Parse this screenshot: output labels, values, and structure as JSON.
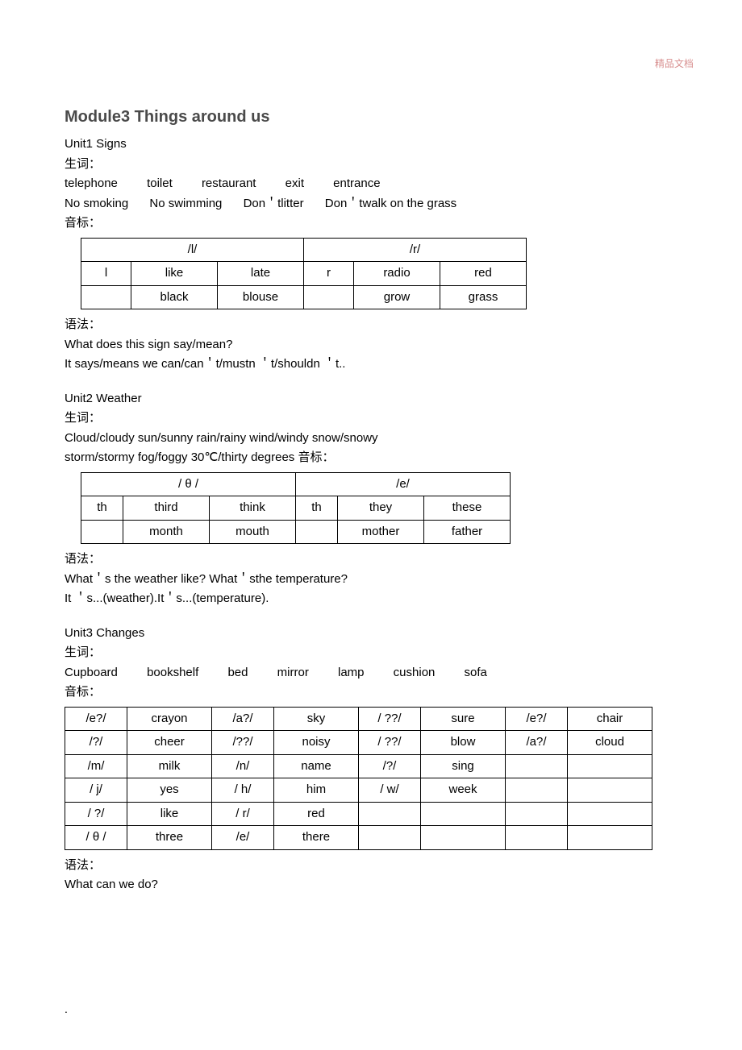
{
  "watermark": "精品文档",
  "module_title": "Module3 Things around us",
  "unit1": {
    "title": "Unit1 Signs",
    "vocab_label": "生词：",
    "vocab_line1": [
      "telephone",
      "toilet",
      "restaurant",
      "exit",
      "entrance"
    ],
    "vocab_line2": [
      "No smoking",
      "No swimming",
      "Don＇tlitter",
      "Don＇twalk on the grass"
    ],
    "phon_label": "音标：",
    "table": {
      "r0": [
        "/l/",
        "/r/"
      ],
      "r1": [
        "l",
        "like",
        "late",
        "r",
        "radio",
        "red"
      ],
      "r2": [
        "",
        "black",
        "blouse",
        "",
        "grow",
        "grass"
      ]
    },
    "grammar_label": "语法：",
    "grammar1": "What does this sign say/mean?",
    "grammar2": "It says/means we can/can＇t/mustn ＇t/shouldn ＇t.."
  },
  "unit2": {
    "title": "Unit2 Weather",
    "vocab_label": "生词：",
    "vocab_line1": "Cloud/cloudy sun/sunny rain/rainy wind/windy snow/snowy",
    "vocab_line2": "storm/stormy fog/foggy 30℃/thirty degrees 音标：",
    "table": {
      "r0": [
        "/ θ /",
        "/e/"
      ],
      "r1": [
        "th",
        "third",
        "think",
        "th",
        "they",
        "these"
      ],
      "r2": [
        "",
        "month",
        "mouth",
        "",
        "mother",
        "father"
      ]
    },
    "grammar_label": "语法：",
    "grammar1": "What＇s the weather like? What＇sthe temperature?",
    "grammar2": "It ＇s...(weather).It＇s...(temperature)."
  },
  "unit3": {
    "title": "Unit3 Changes",
    "vocab_label": "生词：",
    "vocab_line1": [
      "Cupboard",
      "bookshelf",
      "bed",
      "mirror",
      "lamp",
      "cushion",
      "sofa"
    ],
    "phon_label": "音标：",
    "table": {
      "r0": [
        "/e?/",
        "crayon",
        "/a?/",
        "sky",
        "/ ??/",
        "sure",
        "/e?/",
        "chair"
      ],
      "r1": [
        "/?/",
        "cheer",
        "/??/",
        "noisy",
        "/ ??/",
        "blow",
        "/a?/",
        "cloud"
      ],
      "r2": [
        "/m/",
        "milk",
        "/n/",
        "name",
        "/?/",
        "sing",
        "",
        ""
      ],
      "r3": [
        "/ j/",
        "yes",
        "/ h/",
        "him",
        "/ w/",
        "week",
        "",
        ""
      ],
      "r4": [
        "/ ?/",
        "like",
        "/ r/",
        "red",
        "",
        "",
        "",
        ""
      ],
      "r5": [
        "/ θ /",
        "three",
        "/e/",
        "there",
        "",
        "",
        "",
        ""
      ]
    },
    "grammar_label": "语法：",
    "grammar1": "What can we do?"
  },
  "footer_dot": "."
}
